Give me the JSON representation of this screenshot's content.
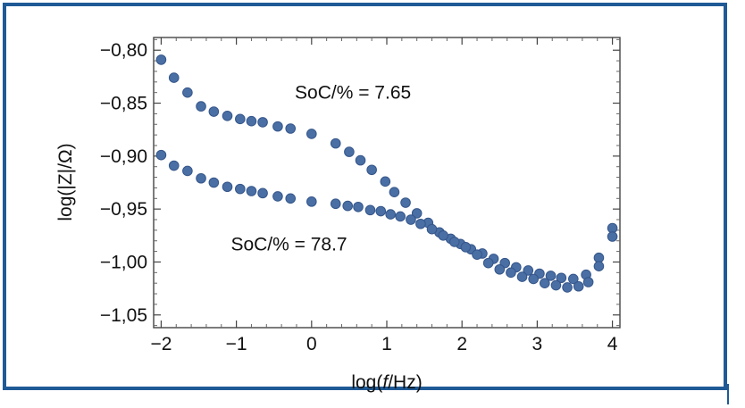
{
  "chart_data": {
    "type": "scatter",
    "title": "",
    "xlabel_pre": "log(",
    "xlabel_italic": "f",
    "xlabel_post": "/Hz)",
    "ylabel": "log(|Z|/Ω)",
    "xlim": [
      -2.1,
      4.1
    ],
    "ylim": [
      -1.062,
      -0.788
    ],
    "xticks": [
      {
        "value": -2,
        "label": "−2"
      },
      {
        "value": -1,
        "label": "−1"
      },
      {
        "value": 0,
        "label": "0"
      },
      {
        "value": 1,
        "label": "1"
      },
      {
        "value": 2,
        "label": "2"
      },
      {
        "value": 3,
        "label": "3"
      },
      {
        "value": 4,
        "label": "4"
      }
    ],
    "yticks": [
      {
        "value": -0.8,
        "label": "−0,80"
      },
      {
        "value": -0.85,
        "label": "−0,85"
      },
      {
        "value": -0.9,
        "label": "−0,90"
      },
      {
        "value": -0.95,
        "label": "−0,95"
      },
      {
        "value": -1.0,
        "label": "−1,00"
      },
      {
        "value": -1.05,
        "label": "−1,05"
      }
    ],
    "marker_color": "#4a6fa5",
    "marker_edge": "#35568a",
    "series": [
      {
        "name": "SoC/% = 7.65",
        "x": [
          -2.0,
          -1.83,
          -1.65,
          -1.47,
          -1.3,
          -1.12,
          -0.95,
          -0.8,
          -0.65,
          -0.45,
          -0.28,
          0.0,
          0.32,
          0.5,
          0.65,
          0.8,
          0.98,
          1.1,
          1.25,
          1.4,
          1.55,
          1.7,
          1.85,
          1.98,
          2.12,
          2.27,
          2.42,
          2.57,
          2.72,
          2.88,
          3.03,
          3.18,
          3.32,
          3.48,
          3.65,
          3.82,
          4.0
        ],
        "y": [
          -0.809,
          -0.826,
          -0.84,
          -0.853,
          -0.858,
          -0.862,
          -0.865,
          -0.867,
          -0.868,
          -0.872,
          -0.874,
          -0.879,
          -0.888,
          -0.896,
          -0.904,
          -0.913,
          -0.924,
          -0.934,
          -0.944,
          -0.954,
          -0.963,
          -0.972,
          -0.978,
          -0.983,
          -0.988,
          -0.992,
          -0.997,
          -1.001,
          -1.005,
          -1.008,
          -1.011,
          -1.013,
          -1.015,
          -1.016,
          -1.012,
          -0.996,
          -0.968
        ]
      },
      {
        "name": "SoC/% = 78.7",
        "x": [
          -2.0,
          -1.83,
          -1.65,
          -1.47,
          -1.3,
          -1.12,
          -0.95,
          -0.8,
          -0.65,
          -0.45,
          -0.28,
          0.0,
          0.32,
          0.48,
          0.62,
          0.78,
          0.92,
          1.05,
          1.18,
          1.32,
          1.45,
          1.6,
          1.75,
          1.9,
          2.05,
          2.2,
          2.35,
          2.5,
          2.65,
          2.8,
          2.95,
          3.1,
          3.25,
          3.4,
          3.55,
          3.68,
          3.82,
          4.0
        ],
        "y": [
          -0.899,
          -0.909,
          -0.914,
          -0.921,
          -0.925,
          -0.929,
          -0.931,
          -0.933,
          -0.935,
          -0.938,
          -0.94,
          -0.943,
          -0.945,
          -0.947,
          -0.948,
          -0.951,
          -0.952,
          -0.955,
          -0.957,
          -0.96,
          -0.964,
          -0.969,
          -0.975,
          -0.981,
          -0.986,
          -0.993,
          -1.001,
          -1.007,
          -1.01,
          -1.014,
          -1.016,
          -1.02,
          -1.022,
          -1.024,
          -1.023,
          -1.019,
          -1.004,
          -0.976
        ]
      }
    ],
    "annotations": [
      {
        "text": "SoC/% = 7.65",
        "x": 0.55,
        "y": -0.84
      },
      {
        "text": "SoC/% = 78.7",
        "x": -0.3,
        "y": -0.983
      }
    ]
  }
}
